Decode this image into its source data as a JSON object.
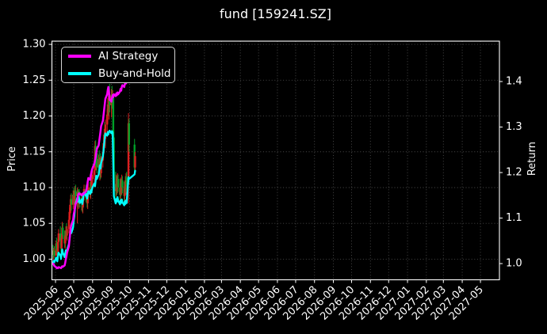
{
  "title": "fund [159241.SZ]",
  "legend": {
    "items": [
      {
        "label": "AI Strategy",
        "color": "#ff00ff"
      },
      {
        "label": "Buy-and-Hold",
        "color": "#00ffff"
      }
    ]
  },
  "chart_data": {
    "type": "line+ohlc",
    "title": "fund [159241.SZ]",
    "background": "#000000",
    "grid": {
      "on": true,
      "color": "#9a9a9a",
      "style": "dotted"
    },
    "legend_position": "upper left",
    "y_left": {
      "label": "Price",
      "min": 0.9712,
      "max": 1.3045,
      "ticks": [
        1.0,
        1.05,
        1.1,
        1.15,
        1.2,
        1.25,
        1.3
      ],
      "tick_labels": [
        "1.00",
        "1.05",
        "1.10",
        "1.15",
        "1.20",
        "1.25",
        "1.30"
      ]
    },
    "y_right": {
      "label": "Return",
      "min": 0.9644,
      "max": 1.4887,
      "ticks": [
        1.0,
        1.1,
        1.2,
        1.3,
        1.4
      ],
      "tick_labels": [
        "1.0",
        "1.1",
        "1.2",
        "1.3",
        "1.4"
      ]
    },
    "x_axis": {
      "epoch": "2025-06-01",
      "min_days": -5.9,
      "max_days": 730.2,
      "tick_labels": [
        "2025-06",
        "2025-07",
        "2025-08",
        "2025-09",
        "2025-10",
        "2025-11",
        "2025-12",
        "2026-01",
        "2026-02",
        "2026-03",
        "2026-04",
        "2026-05",
        "2026-06",
        "2026-07",
        "2026-08",
        "2026-09",
        "2026-10",
        "2026-11",
        "2026-12",
        "2027-01",
        "2027-02",
        "2027-03",
        "2027-04",
        "2027-05"
      ]
    },
    "series_meta": {
      "candles_name": "fund daily price range",
      "up_color": "#dc1f1f",
      "down_color": "#00a028",
      "ai_name": "AI Strategy",
      "ai_color": "#ff00ff",
      "ai_axis": "right",
      "bh_name": "Buy-and-Hold",
      "bh_color": "#00ffff",
      "bh_axis": "right"
    },
    "columns": [
      "date",
      "open",
      "high",
      "low",
      "close",
      "buy_and_hold_return",
      "ai_strategy_return"
    ],
    "rows": [
      [
        "2025-05-28",
        1.012,
        1.02,
        1.0,
        1.006,
        1.0,
        1.0
      ],
      [
        "2025-05-29",
        1.006,
        1.016,
        0.998,
        1.012,
        1.006,
        0.998
      ],
      [
        "2025-05-30",
        1.012,
        1.018,
        1.002,
        1.005,
        1.003,
        0.995
      ],
      [
        "2025-06-02",
        1.005,
        1.026,
        1.003,
        1.022,
        1.013,
        0.992
      ],
      [
        "2025-06-03",
        1.022,
        1.03,
        1.01,
        1.014,
        1.008,
        0.99
      ],
      [
        "2025-06-04",
        1.014,
        1.022,
        1.006,
        1.01,
        1.005,
        0.991
      ],
      [
        "2025-06-05",
        1.01,
        1.028,
        1.006,
        1.024,
        1.016,
        0.99
      ],
      [
        "2025-06-06",
        1.024,
        1.042,
        1.016,
        1.036,
        1.024,
        0.992
      ],
      [
        "2025-06-09",
        1.036,
        1.046,
        1.02,
        1.026,
        1.018,
        0.991
      ],
      [
        "2025-06-10",
        1.026,
        1.032,
        1.01,
        1.015,
        1.01,
        0.99
      ],
      [
        "2025-06-11",
        1.015,
        1.036,
        1.01,
        1.03,
        1.021,
        0.992
      ],
      [
        "2025-06-12",
        1.03,
        1.052,
        1.024,
        1.044,
        1.031,
        0.994
      ],
      [
        "2025-06-13",
        1.044,
        1.05,
        1.028,
        1.034,
        1.024,
        0.993
      ],
      [
        "2025-06-16",
        1.034,
        1.04,
        1.016,
        1.022,
        1.014,
        0.996
      ],
      [
        "2025-06-17",
        1.022,
        1.038,
        1.014,
        1.032,
        1.022,
        1.002
      ],
      [
        "2025-06-18",
        1.032,
        1.046,
        1.024,
        1.04,
        1.029,
        1.01
      ],
      [
        "2025-06-19",
        1.04,
        1.05,
        1.028,
        1.033,
        1.023,
        1.016
      ],
      [
        "2025-06-20",
        1.033,
        1.046,
        1.026,
        1.042,
        1.03,
        1.024
      ],
      [
        "2025-06-23",
        1.042,
        1.06,
        1.036,
        1.055,
        1.043,
        1.038
      ],
      [
        "2025-06-24",
        1.055,
        1.072,
        1.046,
        1.066,
        1.054,
        1.052
      ],
      [
        "2025-06-25",
        1.066,
        1.082,
        1.056,
        1.076,
        1.064,
        1.065
      ],
      [
        "2025-06-26",
        1.076,
        1.09,
        1.064,
        1.084,
        1.072,
        1.078
      ],
      [
        "2025-06-27",
        1.084,
        1.092,
        1.068,
        1.076,
        1.067,
        1.085
      ],
      [
        "2025-06-30",
        1.076,
        1.096,
        1.07,
        1.09,
        1.08,
        1.096
      ],
      [
        "2025-07-01",
        1.09,
        1.1,
        1.076,
        1.082,
        1.095,
        1.108
      ],
      [
        "2025-07-02",
        1.082,
        1.094,
        1.07,
        1.088,
        1.105,
        1.115
      ],
      [
        "2025-07-03",
        1.088,
        1.102,
        1.078,
        1.096,
        1.12,
        1.122
      ],
      [
        "2025-07-04",
        1.096,
        1.104,
        1.082,
        1.088,
        1.132,
        1.13
      ],
      [
        "2025-07-07",
        1.088,
        1.1,
        1.05,
        1.094,
        1.145,
        1.14
      ],
      [
        "2025-07-08",
        1.094,
        1.098,
        1.072,
        1.078,
        1.136,
        1.15
      ],
      [
        "2025-07-09",
        1.078,
        1.096,
        1.07,
        1.09,
        1.146,
        1.154
      ],
      [
        "2025-07-10",
        1.09,
        1.098,
        1.078,
        1.084,
        1.139,
        1.152
      ],
      [
        "2025-07-11",
        1.084,
        1.094,
        1.072,
        1.078,
        1.133,
        1.154
      ],
      [
        "2025-07-14",
        1.078,
        1.092,
        1.068,
        1.086,
        1.141,
        1.15
      ],
      [
        "2025-07-15",
        1.086,
        1.09,
        1.066,
        1.072,
        1.131,
        1.152
      ],
      [
        "2025-07-16",
        1.072,
        1.088,
        1.064,
        1.082,
        1.139,
        1.154
      ],
      [
        "2025-07-17",
        1.082,
        1.098,
        1.074,
        1.092,
        1.149,
        1.152
      ],
      [
        "2025-07-18",
        1.092,
        1.104,
        1.082,
        1.098,
        1.156,
        1.154
      ],
      [
        "2025-07-21",
        1.098,
        1.104,
        1.08,
        1.086,
        1.149,
        1.158
      ],
      [
        "2025-07-22",
        1.086,
        1.1,
        1.078,
        1.094,
        1.153,
        1.163
      ],
      [
        "2025-07-23",
        1.094,
        1.098,
        1.072,
        1.078,
        1.143,
        1.17
      ],
      [
        "2025-07-24",
        1.078,
        1.096,
        1.07,
        1.09,
        1.151,
        1.18
      ],
      [
        "2025-07-25",
        1.09,
        1.106,
        1.082,
        1.1,
        1.159,
        1.188
      ],
      [
        "2025-07-28",
        1.1,
        1.108,
        1.086,
        1.092,
        1.153,
        1.184
      ],
      [
        "2025-07-29",
        1.092,
        1.11,
        1.084,
        1.104,
        1.161,
        1.194
      ],
      [
        "2025-07-30",
        1.104,
        1.116,
        1.094,
        1.098,
        1.156,
        1.2
      ],
      [
        "2025-07-31",
        1.098,
        1.118,
        1.092,
        1.112,
        1.164,
        1.206
      ],
      [
        "2025-08-01",
        1.112,
        1.124,
        1.1,
        1.118,
        1.168,
        1.21
      ],
      [
        "2025-08-04",
        1.118,
        1.13,
        1.106,
        1.124,
        1.176,
        1.22
      ],
      [
        "2025-08-05",
        1.124,
        1.165,
        1.115,
        1.158,
        1.17,
        1.227
      ],
      [
        "2025-08-06",
        1.158,
        1.166,
        1.13,
        1.138,
        1.182,
        1.234
      ],
      [
        "2025-08-07",
        1.138,
        1.156,
        1.124,
        1.148,
        1.193,
        1.244
      ],
      [
        "2025-08-08",
        1.148,
        1.158,
        1.12,
        1.128,
        1.186,
        1.252
      ],
      [
        "2025-08-11",
        1.128,
        1.146,
        1.116,
        1.14,
        1.196,
        1.26
      ],
      [
        "2025-08-12",
        1.14,
        1.152,
        1.118,
        1.124,
        1.206,
        1.27
      ],
      [
        "2025-08-13",
        1.124,
        1.142,
        1.11,
        1.136,
        1.216,
        1.28
      ],
      [
        "2025-08-14",
        1.136,
        1.148,
        1.112,
        1.12,
        1.209,
        1.29
      ],
      [
        "2025-08-15",
        1.12,
        1.144,
        1.114,
        1.138,
        1.221,
        1.302
      ],
      [
        "2025-08-18",
        1.138,
        1.158,
        1.128,
        1.15,
        1.236,
        1.314
      ],
      [
        "2025-08-19",
        1.15,
        1.17,
        1.138,
        1.162,
        1.249,
        1.326
      ],
      [
        "2025-08-20",
        1.162,
        1.182,
        1.148,
        1.174,
        1.263,
        1.338
      ],
      [
        "2025-08-21",
        1.174,
        1.192,
        1.158,
        1.168,
        1.276,
        1.35
      ],
      [
        "2025-08-22",
        1.168,
        1.195,
        1.155,
        1.188,
        1.286,
        1.362
      ],
      [
        "2025-08-25",
        1.188,
        1.21,
        1.176,
        1.202,
        1.281,
        1.372
      ],
      [
        "2025-08-26",
        1.202,
        1.225,
        1.19,
        1.216,
        1.289,
        1.382
      ],
      [
        "2025-08-27",
        1.216,
        1.24,
        1.2,
        1.21,
        1.284,
        1.388
      ],
      [
        "2025-08-28",
        1.21,
        1.235,
        1.195,
        1.228,
        1.29,
        1.376
      ],
      [
        "2025-08-29",
        1.228,
        1.245,
        1.205,
        1.215,
        1.292,
        1.36
      ],
      [
        "2025-09-01",
        1.215,
        1.238,
        1.198,
        1.23,
        1.286,
        1.356
      ],
      [
        "2025-09-02",
        1.23,
        1.242,
        1.21,
        1.218,
        1.291,
        1.364
      ],
      [
        "2025-09-03",
        1.218,
        1.236,
        1.202,
        1.226,
        1.288,
        1.37
      ],
      [
        "2025-09-04",
        1.226,
        1.23,
        1.16,
        1.17,
        1.22,
        1.366
      ],
      [
        "2025-09-05",
        1.17,
        1.18,
        1.095,
        1.105,
        1.148,
        1.372
      ],
      [
        "2025-09-08",
        1.105,
        1.122,
        1.086,
        1.095,
        1.132,
        1.368
      ],
      [
        "2025-09-09",
        1.095,
        1.118,
        1.088,
        1.11,
        1.142,
        1.374
      ],
      [
        "2025-09-10",
        1.11,
        1.116,
        1.09,
        1.098,
        1.136,
        1.37
      ],
      [
        "2025-09-11",
        1.098,
        1.12,
        1.092,
        1.112,
        1.146,
        1.376
      ],
      [
        "2025-09-12",
        1.112,
        1.118,
        1.094,
        1.1,
        1.139,
        1.372
      ],
      [
        "2025-09-15",
        1.1,
        1.112,
        1.082,
        1.09,
        1.13,
        1.378
      ],
      [
        "2025-09-16",
        1.09,
        1.114,
        1.084,
        1.106,
        1.139,
        1.384
      ],
      [
        "2025-09-17",
        1.106,
        1.112,
        1.088,
        1.096,
        1.133,
        1.38
      ],
      [
        "2025-09-18",
        1.096,
        1.118,
        1.09,
        1.11,
        1.141,
        1.388
      ],
      [
        "2025-09-19",
        1.11,
        1.116,
        1.092,
        1.1,
        1.135,
        1.392
      ],
      [
        "2025-09-22",
        1.1,
        1.108,
        1.08,
        1.088,
        1.128,
        1.388
      ],
      [
        "2025-09-23",
        1.088,
        1.11,
        1.082,
        1.102,
        1.137,
        1.394
      ],
      [
        "2025-09-24",
        1.102,
        1.116,
        1.092,
        1.098,
        1.131,
        1.398
      ],
      [
        "2025-09-25",
        1.098,
        1.12,
        1.09,
        1.114,
        1.139,
        1.396
      ],
      [
        "2025-09-26",
        1.114,
        1.122,
        1.096,
        1.104,
        1.133,
        1.4
      ],
      [
        "2025-09-29",
        1.104,
        1.204,
        1.078,
        1.19,
        1.19,
        1.406
      ],
      [
        "2025-09-30",
        1.19,
        1.196,
        1.15,
        1.16,
        1.186,
        1.402
      ],
      [
        "2025-10-09",
        1.16,
        1.168,
        1.118,
        1.128,
        1.196,
        1.412
      ],
      [
        "2025-10-10",
        1.128,
        1.15,
        1.12,
        1.144,
        1.204,
        1.422
      ]
    ]
  }
}
